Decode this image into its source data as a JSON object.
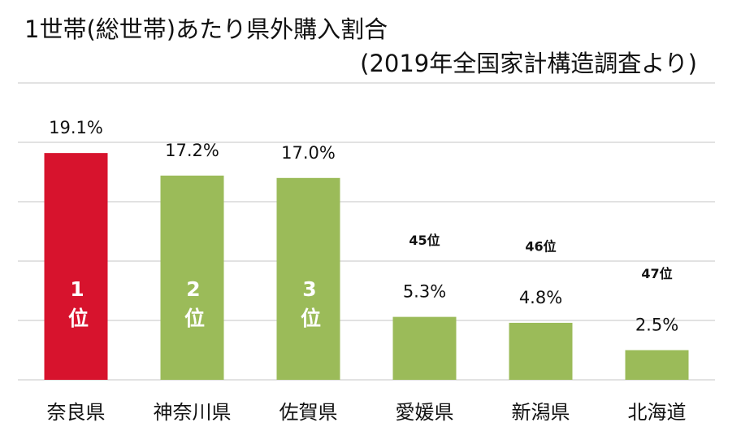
{
  "chart_data": {
    "type": "bar",
    "title": "1世帯(総世帯)あたり県外購入割合",
    "subtitle": "(2019年全国家計構造調査より)",
    "categories": [
      "奈良県",
      "神奈川県",
      "佐賀県",
      "愛媛県",
      "新潟県",
      "北海道"
    ],
    "values": [
      19.1,
      17.2,
      17.0,
      5.3,
      4.8,
      2.5
    ],
    "value_labels": [
      "19.1%",
      "17.2%",
      "17.0%",
      "5.3%",
      "4.8%",
      "2.5%"
    ],
    "rank_labels": [
      "1位",
      "2位",
      "3位",
      "45位",
      "46位",
      "47位"
    ],
    "colors": [
      "#d7132d",
      "#9bbb59",
      "#9bbb59",
      "#9bbb59",
      "#9bbb59",
      "#9bbb59"
    ],
    "ylim": [
      0,
      25
    ],
    "yticks": [
      0,
      5,
      10,
      15,
      20,
      25
    ],
    "grid": true
  }
}
